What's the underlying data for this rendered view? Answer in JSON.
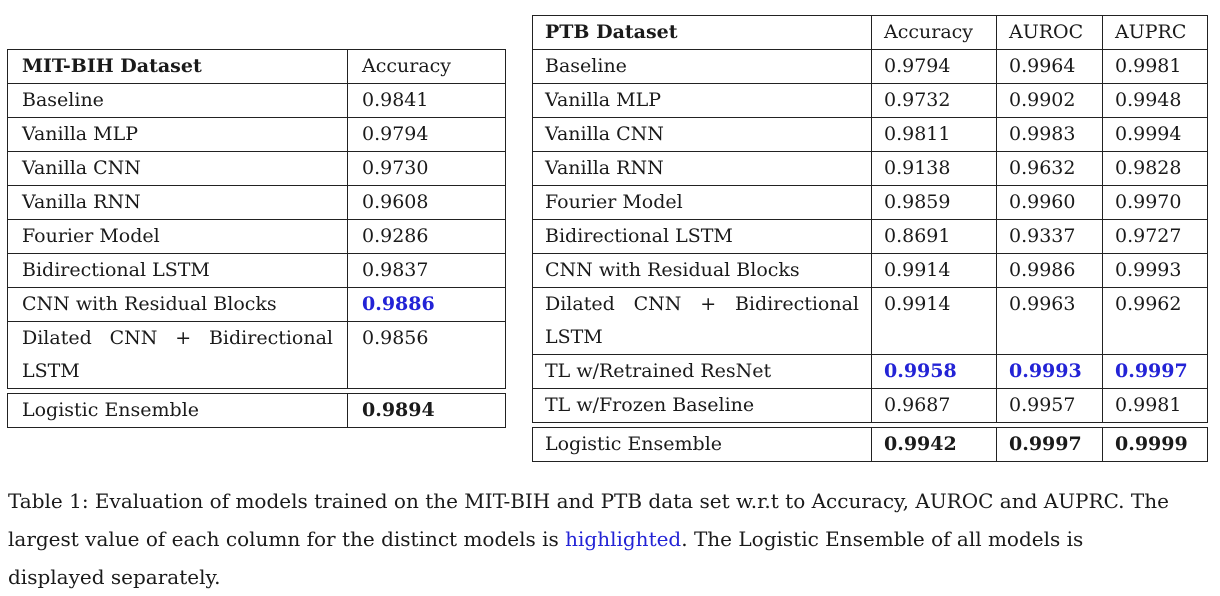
{
  "mit_table": {
    "header": [
      "MIT-BIH Dataset",
      "Accuracy"
    ],
    "rows": [
      [
        "Baseline",
        "0.9841"
      ],
      [
        "Vanilla MLP",
        "0.9794"
      ],
      [
        "Vanilla CNN",
        "0.9730"
      ],
      [
        "Vanilla RNN",
        "0.9608"
      ],
      [
        "Fourier Model",
        "0.9286"
      ],
      [
        "Bidirectional LSTM",
        "0.9837"
      ],
      [
        "CNN with Residual Blocks",
        "0.9886"
      ],
      [
        "Dilated CNN + Bidirectional LSTM",
        "0.9856"
      ]
    ],
    "ensemble": [
      "Logistic Ensemble",
      "0.9894"
    ],
    "highlighted_row": 6,
    "highlight_color": "#2323d6"
  },
  "ptb_table": {
    "header": [
      "PTB Dataset",
      "Accuracy",
      "AUROC",
      "AUPRC"
    ],
    "rows": [
      [
        "Baseline",
        "0.9794",
        "0.9964",
        "0.9981"
      ],
      [
        "Vanilla MLP",
        "0.9732",
        "0.9902",
        "0.9948"
      ],
      [
        "Vanilla CNN",
        "0.9811",
        "0.9983",
        "0.9994"
      ],
      [
        "Vanilla RNN",
        "0.9138",
        "0.9632",
        "0.9828"
      ],
      [
        "Fourier Model",
        "0.9859",
        "0.9960",
        "0.9970"
      ],
      [
        "Bidirectional LSTM",
        "0.8691",
        "0.9337",
        "0.9727"
      ],
      [
        "CNN with Residual Blocks",
        "0.9914",
        "0.9986",
        "0.9993"
      ],
      [
        "Dilated CNN + Bidirectional LSTM",
        "0.9914",
        "0.9963",
        "0.9962"
      ],
      [
        "TL w/Retrained ResNet",
        "0.9958",
        "0.9993",
        "0.9997"
      ],
      [
        "TL w/Frozen Baseline",
        "0.9687",
        "0.9957",
        "0.9981"
      ]
    ],
    "ensemble": [
      "Logistic Ensemble",
      "0.9942",
      "0.9997",
      "0.9999"
    ],
    "highlighted_row": 8
  },
  "caption": {
    "prefix": "Table 1: Evaluation of models trained on the MIT-BIH and PTB data set w.r.t to Accuracy, AUROC and AUPRC. The largest value of each column for the distinct models is ",
    "highlight": "highlighted",
    "suffix": ". The Logistic Ensemble of all models is displayed separately."
  }
}
